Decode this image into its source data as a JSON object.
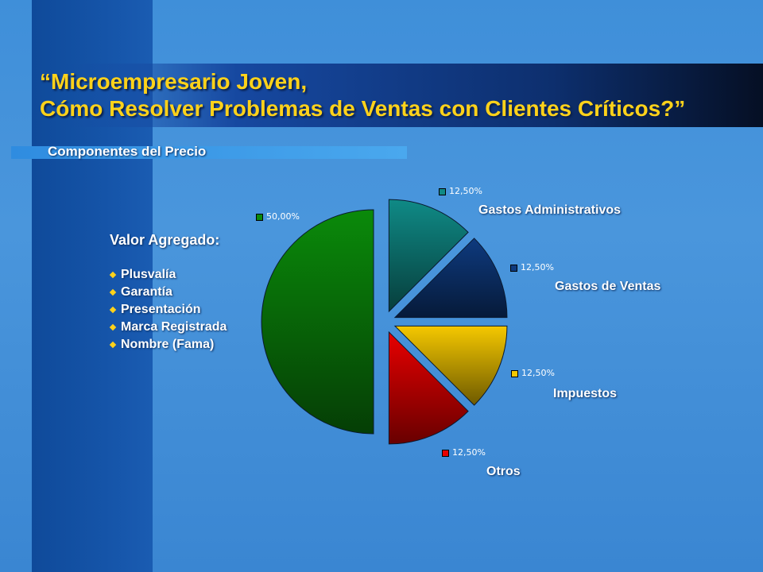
{
  "title_line1": "“Microempresario Joven,",
  "title_line2": "Cómo Resolver Problemas de Ventas con Clientes Críticos?”",
  "subtitle": "Componentes del Precio",
  "valor": {
    "heading": "Valor Agregado:",
    "items": [
      "Plusvalía",
      "Garantía",
      "Presentación",
      "Marca Registrada",
      "Nombre  (Fama)"
    ]
  },
  "chart_data": {
    "type": "pie",
    "title": "",
    "slices": [
      {
        "label": "Gastos Administrativos",
        "value": 12.5,
        "percent_label": "12,50%",
        "color": "#0f8a86"
      },
      {
        "label": "Gastos de Ventas",
        "value": 12.5,
        "percent_label": "12,50%",
        "color": "#0e3a7e"
      },
      {
        "label": "Impuestos",
        "value": 12.5,
        "percent_label": "12,50%",
        "color": "#f5c800"
      },
      {
        "label": "Otros",
        "value": 12.5,
        "percent_label": "12,50%",
        "color": "#e80000"
      },
      {
        "label": "",
        "value": 50.0,
        "percent_label": "50,00%",
        "color": "#0a8a0a"
      }
    ]
  }
}
